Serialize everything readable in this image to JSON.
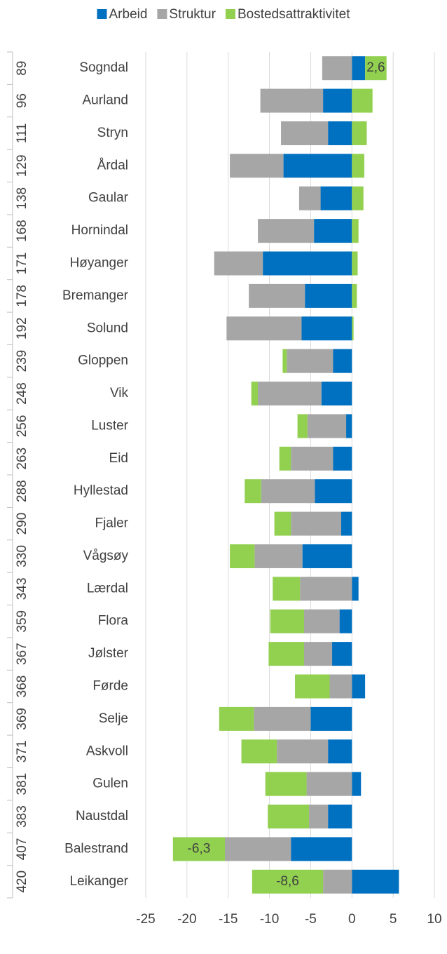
{
  "chart_data": {
    "type": "bar",
    "orientation": "horizontal",
    "stacked": true,
    "ranks": [
      89,
      96,
      111,
      129,
      138,
      168,
      171,
      178,
      192,
      239,
      248,
      256,
      263,
      288,
      290,
      330,
      343,
      359,
      367,
      368,
      369,
      371,
      381,
      383,
      407,
      420
    ],
    "categories": [
      "Sogndal",
      "Aurland",
      "Stryn",
      "Årdal",
      "Gaular",
      "Hornindal",
      "Høyanger",
      "Bremanger",
      "Solund",
      "Gloppen",
      "Vik",
      "Luster",
      "Eid",
      "Hyllestad",
      "Fjaler",
      "Vågsøy",
      "Lærdal",
      "Flora",
      "Jølster",
      "Førde",
      "Selje",
      "Askvoll",
      "Gulen",
      "Naustdal",
      "Balestrand",
      "Leikanger"
    ],
    "series": [
      {
        "name": "Arbeid",
        "color": "#0070c0",
        "values": [
          1.6,
          -3.5,
          -2.9,
          -8.3,
          -3.8,
          -4.6,
          -10.8,
          -5.7,
          -6.1,
          -2.3,
          -3.7,
          -0.7,
          -2.3,
          -4.5,
          -1.3,
          -6.0,
          0.8,
          -1.5,
          -2.4,
          1.6,
          -5.0,
          -2.9,
          1.1,
          -2.9,
          -7.4,
          5.7
        ]
      },
      {
        "name": "Struktur",
        "color": "#a6a6a6",
        "values": [
          -3.6,
          -7.6,
          -5.7,
          -6.5,
          -2.6,
          -6.8,
          -5.9,
          -6.8,
          -9.1,
          -5.6,
          -7.7,
          -4.7,
          -5.1,
          -6.5,
          -6.1,
          -5.8,
          -6.3,
          -4.3,
          -3.4,
          -2.7,
          -6.9,
          -6.2,
          -5.5,
          -2.3,
          -8.0,
          -3.5
        ]
      },
      {
        "name": "Bostedsattraktivitet",
        "color": "#92d050",
        "values": [
          2.6,
          2.5,
          1.8,
          1.5,
          1.4,
          0.8,
          0.7,
          0.6,
          0.2,
          -0.5,
          -0.8,
          -1.2,
          -1.4,
          -2.0,
          -2.0,
          -3.0,
          -3.3,
          -4.1,
          -4.3,
          -4.2,
          -4.2,
          -4.3,
          -5.0,
          -5.0,
          -6.3,
          -8.6
        ],
        "value_labels": [
          "2,6",
          null,
          null,
          null,
          null,
          null,
          null,
          null,
          null,
          null,
          null,
          null,
          null,
          null,
          null,
          null,
          null,
          null,
          null,
          null,
          null,
          null,
          null,
          null,
          "-6,3",
          "-8,6"
        ]
      }
    ],
    "xlim": [
      -25,
      10
    ],
    "xticks": [
      -25,
      -20,
      -15,
      -10,
      -5,
      0,
      5,
      10
    ],
    "grid": true,
    "legend": "top"
  }
}
